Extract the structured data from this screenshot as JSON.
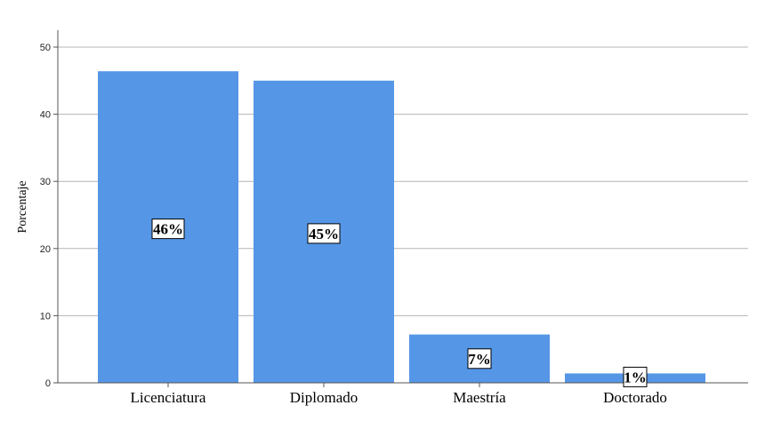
{
  "chart_data": {
    "type": "bar",
    "title": "",
    "xlabel": "",
    "ylabel": "Porcentaje",
    "categories": [
      "Licenciatura",
      "Diplomado",
      "Maestría",
      "Doctorado"
    ],
    "values": [
      46.4,
      45.0,
      7.2,
      1.4
    ],
    "data_labels": [
      "46%",
      "45%",
      "7%",
      "1%"
    ],
    "ylim": [
      0,
      50
    ],
    "yticks": [
      "0",
      "10",
      "20",
      "30",
      "40",
      "50"
    ],
    "grid": true,
    "bar_color": "#5596e6"
  }
}
